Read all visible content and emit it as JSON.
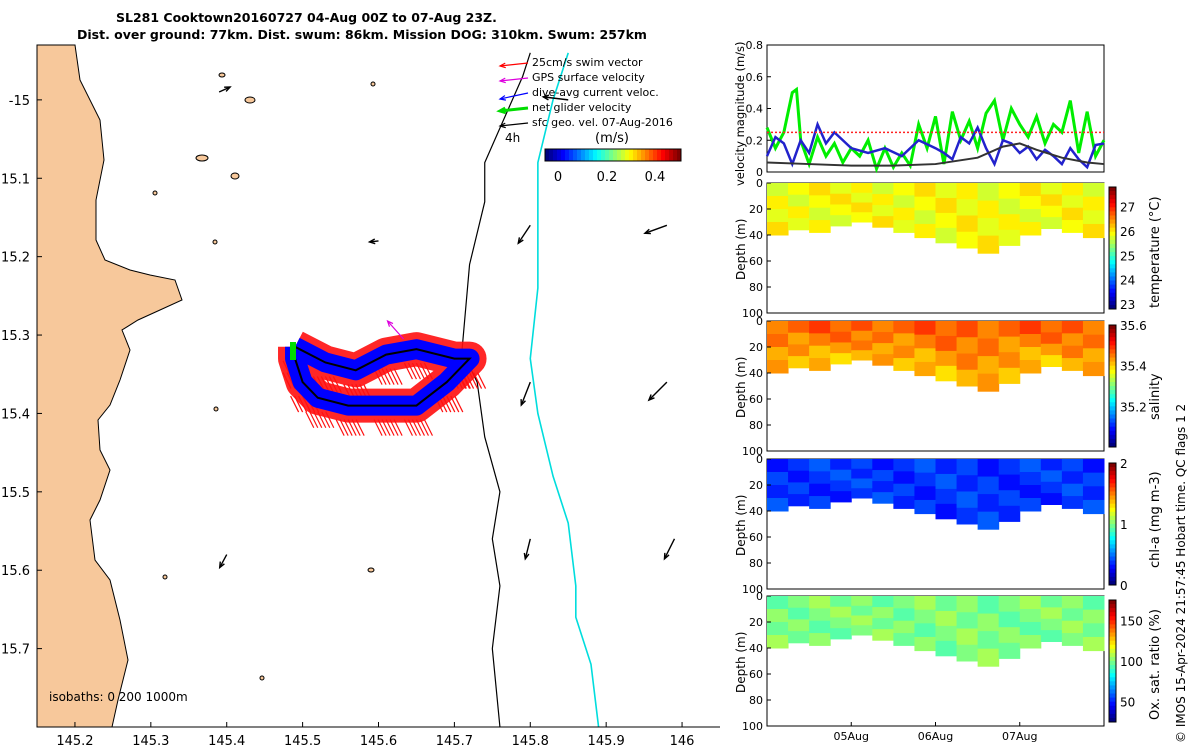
{
  "header": {
    "title_line1": "SL281 Cooktown20160727 04-Aug 00Z to 07-Aug 23Z.",
    "title_line2": "Dist. over ground: 77km. Dist. swum: 86km. Mission DOG: 310km. Swum: 257km"
  },
  "map": {
    "legend": [
      {
        "label": "25cm/s swim vector",
        "color": "#ff0000"
      },
      {
        "label": "GPS surface velocity",
        "color": "#dd00dd"
      },
      {
        "label": "dive-avg current veloc.",
        "color": "#0000ff"
      },
      {
        "label": "net glider velocity",
        "color": "#00dd00"
      },
      {
        "label": "sfc geo. vel. 07-Aug-2016",
        "color": "#000000"
      }
    ],
    "time_label": "4h",
    "colorbar_unit": "(m/s)",
    "colorbar_ticks": [
      "0",
      "0.2",
      "0.4"
    ],
    "isobaths_label": "isobaths: 0   200  1000m",
    "colors": {
      "land": "#f7c89b",
      "isobath_200": "#000000",
      "isobath_1000": "#00dddd"
    }
  },
  "footer_credit": "© IMOS 15-Apr-2024 21:57:45 Hobart time. QC flags 1  2",
  "chart_data": [
    {
      "type": "map",
      "title": "SL281 Cooktown20160727 glider track",
      "xlabel": "",
      "ylabel": "",
      "xlim": [
        145.15,
        146.05
      ],
      "ylim": [
        -15.8,
        -14.93
      ],
      "x_ticks": [
        "145.2",
        "145.3",
        "145.4",
        "145.5",
        "145.6",
        "145.7",
        "145.8",
        "145.9",
        "146"
      ],
      "x_tick_values": [
        145.2,
        145.3,
        145.4,
        145.5,
        145.6,
        145.7,
        145.8,
        145.9,
        146.0
      ],
      "y_ticks": [
        "-15",
        "15.1",
        "15.2",
        "15.3",
        "15.4",
        "15.5",
        "15.6",
        "15.7"
      ],
      "y_tick_values": [
        -15.0,
        -15.1,
        -15.2,
        -15.3,
        -15.4,
        -15.5,
        -15.6,
        -15.7
      ],
      "track": [
        [
          145.49,
          -15.315
        ],
        [
          145.53,
          -15.335
        ],
        [
          145.57,
          -15.345
        ],
        [
          145.61,
          -15.325
        ],
        [
          145.65,
          -15.318
        ],
        [
          145.7,
          -15.33
        ],
        [
          145.72,
          -15.33
        ],
        [
          145.69,
          -15.36
        ],
        [
          145.65,
          -15.39
        ],
        [
          145.61,
          -15.39
        ],
        [
          145.56,
          -15.39
        ],
        [
          145.52,
          -15.38
        ],
        [
          145.5,
          -15.36
        ],
        [
          145.49,
          -15.33
        ]
      ],
      "isobath_200": [
        [
          145.8,
          -14.94
        ],
        [
          145.79,
          -14.97
        ],
        [
          145.74,
          -15.08
        ],
        [
          145.74,
          -15.13
        ],
        [
          145.72,
          -15.21
        ],
        [
          145.71,
          -15.32
        ],
        [
          145.73,
          -15.36
        ],
        [
          145.74,
          -15.43
        ],
        [
          145.76,
          -15.5
        ],
        [
          145.75,
          -15.56
        ],
        [
          145.76,
          -15.62
        ],
        [
          145.75,
          -15.7
        ],
        [
          145.76,
          -15.8
        ]
      ],
      "isobath_1000": [
        [
          145.85,
          -14.94
        ],
        [
          145.83,
          -15.0
        ],
        [
          145.81,
          -15.08
        ],
        [
          145.81,
          -15.16
        ],
        [
          145.81,
          -15.24
        ],
        [
          145.8,
          -15.33
        ],
        [
          145.81,
          -15.4
        ],
        [
          145.83,
          -15.48
        ],
        [
          145.85,
          -15.54
        ],
        [
          145.86,
          -15.62
        ],
        [
          145.86,
          -15.66
        ],
        [
          145.88,
          -15.72
        ],
        [
          145.89,
          -15.8
        ]
      ],
      "geo_vectors": [
        {
          "lon": 145.39,
          "lat": -14.99,
          "u": 0.11,
          "v": 0.05
        },
        {
          "lon": 145.85,
          "lat": -15.0,
          "u": -0.25,
          "v": 0.03
        },
        {
          "lon": 145.6,
          "lat": -15.18,
          "u": -0.09,
          "v": -0.01
        },
        {
          "lon": 145.8,
          "lat": -15.16,
          "u": -0.12,
          "v": -0.18
        },
        {
          "lon": 145.98,
          "lat": -15.16,
          "u": -0.22,
          "v": -0.08
        },
        {
          "lon": 145.8,
          "lat": -15.36,
          "u": -0.09,
          "v": -0.23
        },
        {
          "lon": 145.98,
          "lat": -15.36,
          "u": -0.18,
          "v": -0.18
        },
        {
          "lon": 145.4,
          "lat": -15.58,
          "u": -0.07,
          "v": -0.13
        },
        {
          "lon": 145.8,
          "lat": -15.56,
          "u": -0.05,
          "v": -0.2
        },
        {
          "lon": 145.99,
          "lat": -15.56,
          "u": -0.1,
          "v": -0.2
        }
      ],
      "gps_vector": {
        "lon": 145.633,
        "lat": -15.305,
        "u": -0.16,
        "v": 0.18
      }
    },
    {
      "type": "line",
      "title": "",
      "xlabel": "",
      "ylabel": "velocity magnitude (m/s)",
      "xlim": [
        0,
        4
      ],
      "ylim": [
        0,
        0.8
      ],
      "y_ticks": [
        "0",
        "0.2",
        "0.4",
        "0.6",
        "0.8"
      ],
      "x_ticks": [
        "05Aug",
        "06Aug",
        "07Aug"
      ],
      "x_tick_values": [
        1,
        2,
        3
      ],
      "series": [
        {
          "name": "net glider velocity",
          "color": "#00ee00",
          "x": [
            0,
            0.1,
            0.2,
            0.3,
            0.35,
            0.4,
            0.5,
            0.6,
            0.7,
            0.8,
            0.9,
            1.0,
            1.1,
            1.2,
            1.3,
            1.4,
            1.5,
            1.6,
            1.7,
            1.8,
            1.9,
            2.0,
            2.1,
            2.2,
            2.3,
            2.4,
            2.5,
            2.6,
            2.7,
            2.8,
            2.9,
            3.0,
            3.1,
            3.2,
            3.3,
            3.4,
            3.5,
            3.6,
            3.7,
            3.8,
            3.9,
            4.0
          ],
          "y": [
            0.28,
            0.15,
            0.25,
            0.5,
            0.52,
            0.2,
            0.05,
            0.22,
            0.1,
            0.18,
            0.06,
            0.15,
            0.1,
            0.2,
            0.02,
            0.15,
            0.03,
            0.12,
            0.04,
            0.3,
            0.15,
            0.35,
            0.05,
            0.38,
            0.2,
            0.32,
            0.15,
            0.37,
            0.45,
            0.2,
            0.4,
            0.3,
            0.22,
            0.35,
            0.18,
            0.3,
            0.25,
            0.45,
            0.12,
            0.38,
            0.1,
            0.2
          ]
        },
        {
          "name": "dive-avg current veloc.",
          "color": "#2222cc",
          "x": [
            0,
            0.1,
            0.2,
            0.3,
            0.4,
            0.5,
            0.6,
            0.7,
            0.8,
            0.9,
            1.0,
            1.2,
            1.4,
            1.6,
            1.8,
            2.0,
            2.1,
            2.2,
            2.3,
            2.4,
            2.5,
            2.6,
            2.7,
            2.8,
            2.9,
            3.0,
            3.1,
            3.2,
            3.3,
            3.4,
            3.5,
            3.6,
            3.7,
            3.8,
            3.9,
            4.0
          ],
          "y": [
            0.1,
            0.22,
            0.18,
            0.05,
            0.2,
            0.12,
            0.3,
            0.18,
            0.25,
            0.2,
            0.15,
            0.12,
            0.15,
            0.1,
            0.2,
            0.15,
            0.12,
            0.08,
            0.22,
            0.18,
            0.28,
            0.15,
            0.05,
            0.2,
            0.18,
            0.12,
            0.16,
            0.08,
            0.14,
            0.1,
            0.05,
            0.15,
            0.08,
            0.03,
            0.17,
            0.18
          ]
        },
        {
          "name": "sfc geo. vel.",
          "color": "#333333",
          "x": [
            0,
            0.5,
            1.0,
            1.5,
            2.0,
            2.5,
            2.8,
            3.0,
            3.2,
            3.5,
            3.8,
            4.0
          ],
          "y": [
            0.06,
            0.05,
            0.04,
            0.04,
            0.05,
            0.09,
            0.16,
            0.18,
            0.14,
            0.09,
            0.06,
            0.05
          ]
        },
        {
          "name": "25cm/s swim speed",
          "color": "#ff2222",
          "x": [
            0,
            4
          ],
          "y": [
            0.25,
            0.25
          ]
        }
      ]
    },
    {
      "type": "heatmap",
      "title": "",
      "xlabel": "",
      "ylabel": "Depth (m)",
      "ylim": [
        100,
        0
      ],
      "y_ticks": [
        "0",
        "20",
        "40",
        "60",
        "80",
        "100"
      ],
      "colorbar_label": "temperature (°C)",
      "colorbar_range": [
        22.8,
        27.8
      ],
      "colorbar_ticks": [
        "23",
        "24",
        "25",
        "26",
        "27"
      ],
      "typical_value": 25.9,
      "bottom_depth": [
        40,
        36,
        38,
        33,
        30,
        34,
        38,
        42,
        46,
        50,
        54,
        48,
        40,
        35,
        38,
        42
      ]
    },
    {
      "type": "heatmap",
      "title": "",
      "xlabel": "",
      "ylabel": "Depth (m)",
      "ylim": [
        100,
        0
      ],
      "y_ticks": [
        "0",
        "20",
        "40",
        "60",
        "80",
        "100"
      ],
      "colorbar_label": "salinity",
      "colorbar_range": [
        35.0,
        35.6
      ],
      "colorbar_ticks": [
        "35.2",
        "35.4",
        "35.6"
      ],
      "typical_value": 35.47,
      "bottom_depth": [
        40,
        36,
        38,
        33,
        30,
        34,
        38,
        42,
        46,
        50,
        54,
        48,
        40,
        35,
        38,
        42
      ]
    },
    {
      "type": "heatmap",
      "title": "",
      "xlabel": "",
      "ylabel": "Depth (m)",
      "ylim": [
        100,
        0
      ],
      "y_ticks": [
        "0",
        "20",
        "40",
        "60",
        "80",
        "100"
      ],
      "colorbar_label": "chl-a (mg m-3)",
      "colorbar_range": [
        0,
        2
      ],
      "colorbar_ticks": [
        "0",
        "1",
        "2"
      ],
      "typical_value": 0.35,
      "bottom_depth": [
        40,
        36,
        38,
        33,
        30,
        34,
        38,
        42,
        46,
        50,
        54,
        48,
        40,
        35,
        38,
        42
      ]
    },
    {
      "type": "heatmap",
      "title": "",
      "xlabel": "",
      "ylabel": "Depth (m)",
      "ylim": [
        100,
        0
      ],
      "y_ticks": [
        "0",
        "20",
        "40",
        "60",
        "80",
        "100"
      ],
      "x_ticks": [
        "05Aug",
        "06Aug",
        "07Aug"
      ],
      "colorbar_label": "Ox. sat. ratio (%)",
      "colorbar_range": [
        25,
        175
      ],
      "colorbar_ticks": [
        "50",
        "100",
        "150"
      ],
      "typical_value": 100,
      "bottom_depth": [
        40,
        36,
        38,
        33,
        30,
        34,
        38,
        42,
        46,
        50,
        54,
        48,
        40,
        35,
        38,
        42
      ]
    }
  ]
}
